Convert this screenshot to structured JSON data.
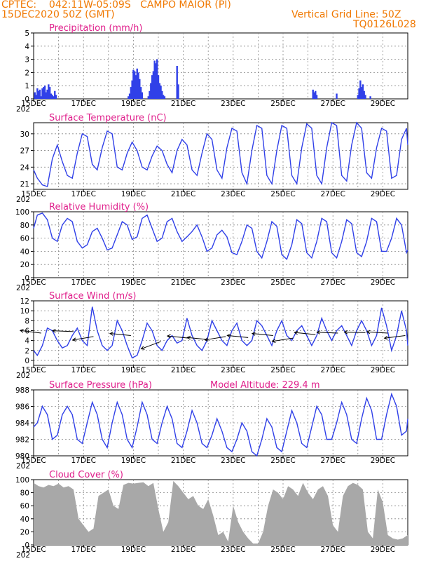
{
  "header": {
    "station": "CPTEC:    042:11W-05:09S   CAMPO MAIOR (PI)",
    "date": "15DEC2020 50Z (GMT)",
    "grid_note": "Vertical Grid Line: 50Z",
    "code": "TQ0126L028"
  },
  "x_axis": {
    "labels": [
      "15DEC",
      "17DEC",
      "19DEC",
      "21DEC",
      "23DEC",
      "25DEC",
      "27DEC",
      "29DEC"
    ],
    "year_fragment": "202",
    "range_days": [
      0,
      15
    ]
  },
  "colors": {
    "header": "#f07800",
    "title": "#e0208c",
    "line": "#3040e8",
    "cloud": "#a8a8a8",
    "arrow": "#000000"
  },
  "chart_data": [
    {
      "type": "bar",
      "title": "Precipitation (mm/h)",
      "ylim": [
        0,
        5
      ],
      "yticks": [
        "0",
        "1",
        "2",
        "3",
        "4",
        "5"
      ],
      "x_unit": "days since 15DEC",
      "series": [
        {
          "x": [
            0.05,
            0.1,
            0.15,
            0.2,
            0.25,
            0.3,
            0.35,
            0.4,
            0.45,
            0.5,
            0.55,
            0.6,
            0.65,
            0.7,
            0.75,
            0.8,
            0.85,
            0.9,
            3.8,
            3.85,
            3.9,
            3.95,
            4.0,
            4.05,
            4.1,
            4.15,
            4.2,
            4.25,
            4.3,
            4.35,
            4.6,
            4.65,
            4.7,
            4.75,
            4.8,
            4.85,
            4.9,
            4.95,
            5.0,
            5.05,
            5.1,
            5.15,
            5.2,
            5.25,
            5.75,
            5.8,
            11.2,
            11.25,
            11.3,
            11.35,
            12.15,
            13.0,
            13.05,
            13.1,
            13.15,
            13.2,
            13.25,
            13.3,
            13.5
          ],
          "values": [
            0.5,
            0.3,
            0.8,
            0.6,
            0.7,
            0.2,
            0.8,
            0.9,
            1.0,
            0.5,
            0.7,
            1.1,
            0.9,
            0.4,
            0.3,
            0.2,
            0.6,
            0.3,
            0.2,
            0.4,
            0.9,
            1.4,
            2.2,
            2.1,
            1.8,
            2.3,
            2.0,
            1.5,
            0.9,
            0.5,
            0.2,
            0.6,
            1.2,
            1.8,
            2.1,
            2.9,
            2.7,
            3.0,
            1.8,
            1.2,
            1.0,
            0.6,
            0.3,
            0.2,
            2.5,
            1.1,
            0.7,
            0.5,
            0.6,
            0.3,
            0.4,
            0.3,
            0.8,
            1.4,
            0.9,
            1.1,
            0.6,
            0.3,
            0.2
          ]
        }
      ]
    },
    {
      "type": "line",
      "title": "Surface Temperature (nC)",
      "ylim": [
        20,
        32
      ],
      "yticks": [
        "21",
        "24",
        "27",
        "30"
      ],
      "x_unit": "days since 15DEC",
      "series": [
        {
          "x": [
            0,
            0.15,
            0.35,
            0.55,
            0.75,
            0.95,
            1.15,
            1.35,
            1.55,
            1.75,
            1.95,
            2.15,
            2.35,
            2.55,
            2.75,
            2.95,
            3.15,
            3.35,
            3.55,
            3.75,
            3.95,
            4.15,
            4.35,
            4.55,
            4.75,
            4.95,
            5.15,
            5.35,
            5.55,
            5.75,
            5.95,
            6.15,
            6.35,
            6.55,
            6.75,
            6.95,
            7.15,
            7.35,
            7.55,
            7.75,
            7.95,
            8.15,
            8.35,
            8.55,
            8.75,
            8.95,
            9.15,
            9.35,
            9.55,
            9.75,
            9.95,
            10.15,
            10.35,
            10.55,
            10.75,
            10.95,
            11.15,
            11.35,
            11.55,
            11.75,
            11.95,
            12.15,
            12.35,
            12.55,
            12.75,
            12.95,
            13.15,
            13.35,
            13.55,
            13.75,
            13.95,
            14.15,
            14.35,
            14.55,
            14.75,
            14.95,
            15.0
          ],
          "values": [
            23.5,
            22.0,
            20.8,
            20.5,
            25.5,
            28.0,
            25.0,
            22.5,
            22.0,
            26.5,
            30.0,
            29.5,
            24.5,
            23.5,
            27.5,
            30.5,
            30.0,
            24.0,
            23.5,
            26.5,
            28.5,
            27.0,
            24.0,
            23.5,
            26.0,
            27.8,
            27.0,
            24.5,
            23.0,
            27.0,
            29.0,
            28.0,
            23.5,
            22.5,
            26.5,
            30.0,
            29.0,
            23.5,
            22.0,
            27.5,
            31.0,
            30.5,
            23.0,
            21.0,
            27.0,
            31.5,
            31.0,
            22.5,
            21.0,
            27.0,
            31.5,
            31.0,
            22.5,
            21.0,
            27.5,
            31.8,
            31.0,
            22.5,
            21.0,
            27.5,
            32.0,
            31.5,
            22.5,
            21.5,
            28.0,
            32.0,
            31.0,
            23.0,
            22.0,
            27.5,
            31.0,
            30.5,
            22.0,
            22.5,
            29.0,
            31.0,
            28.0
          ]
        }
      ]
    },
    {
      "type": "line",
      "title": "Relative Humidity (%)",
      "ylim": [
        0,
        100
      ],
      "yticks": [
        "0",
        "20",
        "40",
        "60",
        "80",
        "100"
      ],
      "x_unit": "days since 15DEC",
      "series": [
        {
          "x": [
            0,
            0.15,
            0.35,
            0.55,
            0.75,
            0.95,
            1.15,
            1.35,
            1.55,
            1.75,
            1.95,
            2.15,
            2.35,
            2.55,
            2.75,
            2.95,
            3.15,
            3.35,
            3.55,
            3.75,
            3.95,
            4.15,
            4.35,
            4.55,
            4.75,
            4.95,
            5.15,
            5.35,
            5.55,
            5.75,
            5.95,
            6.15,
            6.35,
            6.55,
            6.75,
            6.95,
            7.15,
            7.35,
            7.55,
            7.75,
            7.95,
            8.15,
            8.35,
            8.55,
            8.75,
            8.95,
            9.15,
            9.35,
            9.55,
            9.75,
            9.95,
            10.15,
            10.35,
            10.55,
            10.75,
            10.95,
            11.15,
            11.35,
            11.55,
            11.75,
            11.95,
            12.15,
            12.35,
            12.55,
            12.75,
            12.95,
            13.15,
            13.35,
            13.55,
            13.75,
            13.95,
            14.15,
            14.35,
            14.55,
            14.75,
            14.95,
            15.0
          ],
          "values": [
            75,
            95,
            98,
            88,
            60,
            55,
            80,
            90,
            85,
            55,
            45,
            50,
            70,
            75,
            60,
            42,
            45,
            65,
            85,
            80,
            58,
            62,
            90,
            95,
            75,
            55,
            60,
            85,
            90,
            70,
            55,
            62,
            70,
            80,
            62,
            40,
            45,
            65,
            72,
            62,
            38,
            35,
            55,
            80,
            75,
            40,
            30,
            55,
            85,
            78,
            35,
            28,
            50,
            88,
            82,
            38,
            30,
            55,
            90,
            85,
            38,
            30,
            55,
            88,
            82,
            38,
            32,
            55,
            90,
            85,
            40,
            40,
            60,
            90,
            80,
            38,
            42
          ]
        }
      ]
    },
    {
      "type": "line",
      "title": "Surface Wind (m/s)",
      "ylim": [
        -1,
        12
      ],
      "yticks": [
        "0",
        "2",
        "4",
        "6",
        "8",
        "10",
        "12"
      ],
      "x_unit": "days since 15DEC",
      "series": [
        {
          "x": [
            0,
            0.15,
            0.35,
            0.55,
            0.75,
            0.95,
            1.15,
            1.35,
            1.55,
            1.75,
            1.95,
            2.15,
            2.35,
            2.55,
            2.75,
            2.95,
            3.15,
            3.35,
            3.55,
            3.75,
            3.95,
            4.15,
            4.35,
            4.55,
            4.75,
            4.95,
            5.15,
            5.35,
            5.55,
            5.75,
            5.95,
            6.15,
            6.35,
            6.55,
            6.75,
            6.95,
            7.15,
            7.35,
            7.55,
            7.75,
            7.95,
            8.15,
            8.35,
            8.55,
            8.75,
            8.95,
            9.15,
            9.35,
            9.55,
            9.75,
            9.95,
            10.15,
            10.35,
            10.55,
            10.75,
            10.95,
            11.15,
            11.35,
            11.55,
            11.75,
            11.95,
            12.15,
            12.35,
            12.55,
            12.75,
            12.95,
            13.15,
            13.35,
            13.55,
            13.75,
            13.95,
            14.15,
            14.35,
            14.55,
            14.75,
            14.95,
            15.0
          ],
          "values": [
            2,
            1,
            3,
            6.5,
            6,
            4,
            2.5,
            3,
            5,
            6.5,
            4,
            3,
            10.8,
            6,
            3,
            2,
            3,
            8,
            6,
            3,
            0.5,
            1,
            4,
            7.5,
            6,
            3,
            2,
            4,
            5,
            3.5,
            4,
            8.5,
            5,
            3,
            2,
            4,
            8,
            6,
            4,
            3,
            6,
            7.5,
            4,
            3,
            4,
            8,
            7,
            5,
            3,
            6,
            8,
            5,
            4,
            6,
            7,
            5,
            3,
            5,
            8.5,
            6,
            4,
            6,
            7,
            5,
            3,
            6,
            8,
            6,
            3,
            5,
            10.6,
            7,
            2,
            5,
            10,
            6,
            3
          ]
        }
      ],
      "wind_arrows": [
        {
          "x": 0.3,
          "y": 5.5,
          "u": -4,
          "v": 0.5
        },
        {
          "x": 1.6,
          "y": 5.8,
          "u": -5,
          "v": 0.2
        },
        {
          "x": 2.4,
          "y": 4.8,
          "u": -6,
          "v": -1.0
        },
        {
          "x": 3.9,
          "y": 5.0,
          "u": -5,
          "v": 0.5
        },
        {
          "x": 5.1,
          "y": 3.8,
          "u": -4,
          "v": -1.5
        },
        {
          "x": 6.2,
          "y": 4.5,
          "u": -5,
          "v": 0.5
        },
        {
          "x": 7.0,
          "y": 4.2,
          "u": -5,
          "v": 0.5
        },
        {
          "x": 7.7,
          "y": 4.8,
          "u": -5,
          "v": -0.8
        },
        {
          "x": 8.6,
          "y": 4.6,
          "u": -5,
          "v": 0.5
        },
        {
          "x": 9.6,
          "y": 5.0,
          "u": -5,
          "v": 0.5
        },
        {
          "x": 10.4,
          "y": 4.5,
          "u": -5,
          "v": -0.8
        },
        {
          "x": 11.3,
          "y": 5.2,
          "u": -5,
          "v": 0.5
        },
        {
          "x": 12.2,
          "y": 5.5,
          "u": -5,
          "v": 0.2
        },
        {
          "x": 13.3,
          "y": 5.6,
          "u": -5,
          "v": 0.1
        },
        {
          "x": 14.2,
          "y": 5.5,
          "u": -5,
          "v": 0.3
        },
        {
          "x": 14.9,
          "y": 5.0,
          "u": -4,
          "v": -0.5
        }
      ]
    },
    {
      "type": "line",
      "title": "Surface Pressure (hPa)",
      "extra_label": "Model Altitude: 229.4 m",
      "ylim": [
        980,
        988
      ],
      "yticks": [
        "980",
        "982",
        "984",
        "986",
        "988"
      ],
      "x_unit": "days since 15DEC",
      "series": [
        {
          "x": [
            0,
            0.15,
            0.35,
            0.55,
            0.75,
            0.95,
            1.15,
            1.35,
            1.55,
            1.75,
            1.95,
            2.15,
            2.35,
            2.55,
            2.75,
            2.95,
            3.15,
            3.35,
            3.55,
            3.75,
            3.95,
            4.15,
            4.35,
            4.55,
            4.75,
            4.95,
            5.15,
            5.35,
            5.55,
            5.75,
            5.95,
            6.15,
            6.35,
            6.55,
            6.75,
            6.95,
            7.15,
            7.35,
            7.55,
            7.75,
            7.95,
            8.15,
            8.35,
            8.55,
            8.75,
            8.95,
            9.15,
            9.35,
            9.55,
            9.75,
            9.95,
            10.15,
            10.35,
            10.55,
            10.75,
            10.95,
            11.15,
            11.35,
            11.55,
            11.75,
            11.95,
            12.15,
            12.35,
            12.55,
            12.75,
            12.95,
            13.15,
            13.35,
            13.55,
            13.75,
            13.95,
            14.15,
            14.35,
            14.55,
            14.75,
            14.95,
            15.0
          ],
          "values": [
            983.5,
            984,
            986,
            985,
            982,
            982.5,
            985,
            986,
            985,
            982,
            981.5,
            984,
            986.5,
            985,
            982,
            981,
            984,
            986.5,
            985,
            982,
            981,
            983.5,
            986.5,
            985,
            982,
            981.5,
            984,
            986,
            984.5,
            981.5,
            981,
            983,
            985.5,
            984,
            981.5,
            981,
            982.5,
            984.5,
            983,
            981,
            980.5,
            982,
            984,
            983,
            980.5,
            980,
            982,
            984.5,
            983.5,
            981,
            980.5,
            983,
            985.5,
            984,
            981.5,
            981,
            983.5,
            986,
            985,
            982,
            982,
            984,
            986.5,
            985,
            982,
            981.5,
            984.5,
            987,
            985.5,
            982,
            982,
            985,
            987.5,
            986,
            982.5,
            983,
            984.5
          ]
        }
      ]
    },
    {
      "type": "area",
      "title": "Cloud Cover (%)",
      "ylim": [
        0,
        100
      ],
      "yticks": [
        "0",
        "20",
        "40",
        "60",
        "80",
        "100"
      ],
      "x_unit": "days since 15DEC",
      "series": [
        {
          "x": [
            0,
            0.2,
            0.4,
            0.6,
            0.8,
            1.0,
            1.2,
            1.4,
            1.6,
            1.8,
            2.0,
            2.2,
            2.4,
            2.6,
            2.8,
            3.0,
            3.2,
            3.4,
            3.6,
            3.8,
            4.0,
            4.2,
            4.4,
            4.6,
            4.8,
            5.0,
            5.2,
            5.4,
            5.6,
            5.8,
            6.0,
            6.2,
            6.4,
            6.6,
            6.8,
            7.0,
            7.2,
            7.4,
            7.6,
            7.8,
            8.0,
            8.2,
            8.4,
            8.6,
            8.8,
            9.0,
            9.2,
            9.4,
            9.6,
            9.8,
            10.0,
            10.2,
            10.4,
            10.6,
            10.8,
            11.0,
            11.2,
            11.4,
            11.6,
            11.8,
            12.0,
            12.2,
            12.4,
            12.6,
            12.8,
            13.0,
            13.2,
            13.4,
            13.6,
            13.8,
            14.0,
            14.2,
            14.4,
            14.6,
            14.8,
            15.0
          ],
          "values": [
            95,
            90,
            88,
            92,
            90,
            94,
            88,
            90,
            85,
            40,
            30,
            20,
            25,
            75,
            80,
            85,
            60,
            55,
            92,
            95,
            94,
            95,
            96,
            90,
            95,
            55,
            20,
            35,
            98,
            90,
            80,
            70,
            75,
            60,
            55,
            70,
            45,
            15,
            20,
            5,
            60,
            35,
            20,
            10,
            2,
            2,
            20,
            60,
            85,
            80,
            70,
            90,
            85,
            75,
            95,
            80,
            70,
            85,
            90,
            75,
            30,
            20,
            75,
            90,
            95,
            92,
            85,
            20,
            10,
            85,
            65,
            15,
            10,
            8,
            10,
            15
          ]
        }
      ]
    }
  ]
}
